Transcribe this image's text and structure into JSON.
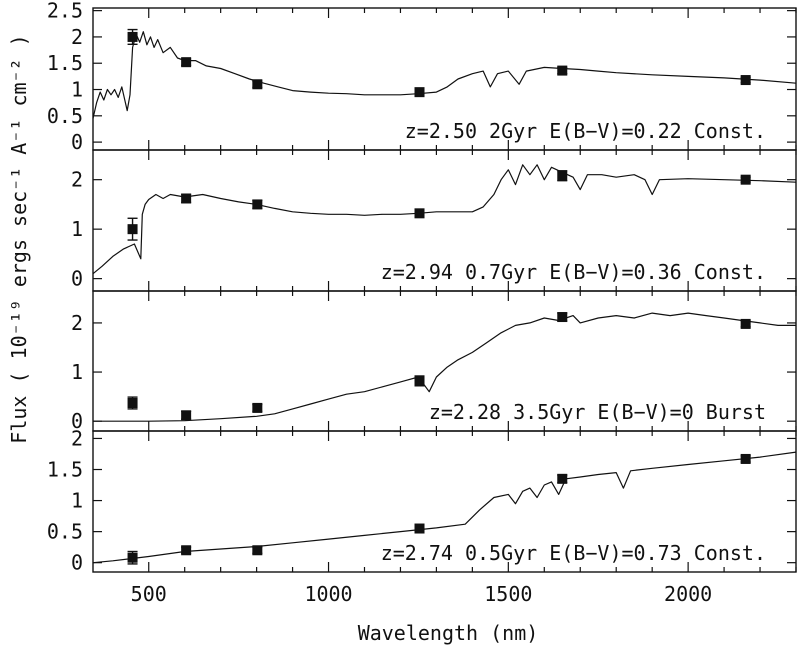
{
  "chart_data": {
    "type": "line",
    "xlabel": "Wavelength (nm)",
    "ylabel": "Flux ( 10⁻¹⁹ ergs sec⁻¹ A⁻¹ cm⁻² )",
    "xlim": [
      345,
      2300
    ],
    "xticks": [
      500,
      1000,
      1500,
      2000
    ],
    "grid": false,
    "legend": "none",
    "panels": [
      {
        "label": "z=2.50 2Gyr E(B−V)=0.22 Const.",
        "ylim": [
          -0.15,
          2.55
        ],
        "yticks": [
          0,
          0.5,
          1,
          1.5,
          2,
          2.5
        ],
        "ytick_labels": [
          "0",
          "0.5",
          "1",
          "1.5",
          "2",
          "2.5"
        ],
        "points": [
          {
            "x": 455,
            "y": 2.0,
            "err": 0.14
          },
          {
            "x": 604,
            "y": 1.52,
            "err": 0.06
          },
          {
            "x": 802,
            "y": 1.1,
            "err": 0.06
          },
          {
            "x": 1253,
            "y": 0.95,
            "err": 0.05
          },
          {
            "x": 1650,
            "y": 1.36,
            "err": 0.06
          },
          {
            "x": 2160,
            "y": 1.18,
            "err": 0.05
          }
        ],
        "model": [
          [
            345,
            0.45
          ],
          [
            355,
            0.75
          ],
          [
            365,
            0.95
          ],
          [
            375,
            0.8
          ],
          [
            385,
            1.0
          ],
          [
            395,
            0.9
          ],
          [
            405,
            1.0
          ],
          [
            415,
            0.85
          ],
          [
            425,
            1.05
          ],
          [
            430,
            0.9
          ],
          [
            440,
            0.6
          ],
          [
            448,
            0.9
          ],
          [
            455,
            1.8
          ],
          [
            465,
            2.05
          ],
          [
            475,
            1.9
          ],
          [
            485,
            2.1
          ],
          [
            495,
            1.85
          ],
          [
            505,
            2.0
          ],
          [
            515,
            1.8
          ],
          [
            525,
            1.95
          ],
          [
            540,
            1.7
          ],
          [
            560,
            1.8
          ],
          [
            580,
            1.6
          ],
          [
            600,
            1.55
          ],
          [
            630,
            1.55
          ],
          [
            660,
            1.45
          ],
          [
            700,
            1.4
          ],
          [
            740,
            1.3
          ],
          [
            780,
            1.2
          ],
          [
            820,
            1.12
          ],
          [
            860,
            1.05
          ],
          [
            900,
            0.98
          ],
          [
            950,
            0.95
          ],
          [
            1000,
            0.93
          ],
          [
            1050,
            0.92
          ],
          [
            1100,
            0.9
          ],
          [
            1150,
            0.9
          ],
          [
            1200,
            0.9
          ],
          [
            1250,
            0.92
          ],
          [
            1300,
            0.95
          ],
          [
            1330,
            1.05
          ],
          [
            1360,
            1.2
          ],
          [
            1400,
            1.3
          ],
          [
            1430,
            1.35
          ],
          [
            1450,
            1.05
          ],
          [
            1470,
            1.3
          ],
          [
            1500,
            1.35
          ],
          [
            1530,
            1.1
          ],
          [
            1550,
            1.35
          ],
          [
            1600,
            1.42
          ],
          [
            1650,
            1.4
          ],
          [
            1700,
            1.38
          ],
          [
            1750,
            1.35
          ],
          [
            1800,
            1.32
          ],
          [
            1900,
            1.28
          ],
          [
            2000,
            1.25
          ],
          [
            2100,
            1.22
          ],
          [
            2200,
            1.18
          ],
          [
            2300,
            1.12
          ]
        ]
      },
      {
        "label": "z=2.94 0.7Gyr E(B−V)=0.36 Const.",
        "ylim": [
          -0.25,
          2.6
        ],
        "yticks": [
          0,
          1,
          2
        ],
        "ytick_labels": [
          "0",
          "1",
          "2"
        ],
        "points": [
          {
            "x": 455,
            "y": 1.0,
            "err": 0.22
          },
          {
            "x": 604,
            "y": 1.62,
            "err": 0.08
          },
          {
            "x": 802,
            "y": 1.5,
            "err": 0.08
          },
          {
            "x": 1253,
            "y": 1.32,
            "err": 0.08
          },
          {
            "x": 1650,
            "y": 2.08,
            "err": 0.1
          },
          {
            "x": 2160,
            "y": 2.0,
            "err": 0.05
          }
        ],
        "model": [
          [
            345,
            0.1
          ],
          [
            370,
            0.25
          ],
          [
            400,
            0.45
          ],
          [
            430,
            0.6
          ],
          [
            460,
            0.7
          ],
          [
            478,
            0.4
          ],
          [
            482,
            1.3
          ],
          [
            490,
            1.5
          ],
          [
            500,
            1.6
          ],
          [
            520,
            1.7
          ],
          [
            540,
            1.62
          ],
          [
            560,
            1.7
          ],
          [
            600,
            1.65
          ],
          [
            650,
            1.7
          ],
          [
            700,
            1.62
          ],
          [
            750,
            1.55
          ],
          [
            800,
            1.5
          ],
          [
            850,
            1.42
          ],
          [
            900,
            1.35
          ],
          [
            950,
            1.32
          ],
          [
            1000,
            1.3
          ],
          [
            1050,
            1.3
          ],
          [
            1100,
            1.28
          ],
          [
            1150,
            1.3
          ],
          [
            1200,
            1.3
          ],
          [
            1250,
            1.32
          ],
          [
            1300,
            1.35
          ],
          [
            1350,
            1.35
          ],
          [
            1400,
            1.35
          ],
          [
            1430,
            1.45
          ],
          [
            1460,
            1.7
          ],
          [
            1480,
            2.0
          ],
          [
            1500,
            2.2
          ],
          [
            1520,
            1.9
          ],
          [
            1540,
            2.3
          ],
          [
            1560,
            2.1
          ],
          [
            1580,
            2.3
          ],
          [
            1600,
            2.0
          ],
          [
            1620,
            2.25
          ],
          [
            1650,
            2.15
          ],
          [
            1680,
            2.05
          ],
          [
            1700,
            1.8
          ],
          [
            1720,
            2.1
          ],
          [
            1760,
            2.1
          ],
          [
            1800,
            2.05
          ],
          [
            1850,
            2.1
          ],
          [
            1880,
            2.0
          ],
          [
            1900,
            1.7
          ],
          [
            1920,
            2.0
          ],
          [
            2000,
            2.02
          ],
          [
            2100,
            2.0
          ],
          [
            2200,
            1.98
          ],
          [
            2300,
            1.95
          ]
        ]
      },
      {
        "label": "z=2.28 3.5Gyr E(B−V)=0 Burst",
        "ylim": [
          -0.2,
          2.65
        ],
        "yticks": [
          0,
          1,
          2
        ],
        "ytick_labels": [
          "0",
          "1",
          "2"
        ],
        "points": [
          {
            "x": 455,
            "y": 0.37,
            "err": 0.12
          },
          {
            "x": 604,
            "y": 0.12,
            "err": 0.08
          },
          {
            "x": 802,
            "y": 0.27,
            "err": 0.07
          },
          {
            "x": 1253,
            "y": 0.82,
            "err": 0.1
          },
          {
            "x": 1650,
            "y": 2.12,
            "err": 0.08
          },
          {
            "x": 2160,
            "y": 1.98,
            "err": 0.06
          }
        ],
        "model": [
          [
            345,
            0.0
          ],
          [
            500,
            0.0
          ],
          [
            600,
            0.01
          ],
          [
            700,
            0.05
          ],
          [
            800,
            0.1
          ],
          [
            850,
            0.15
          ],
          [
            900,
            0.25
          ],
          [
            950,
            0.35
          ],
          [
            1000,
            0.45
          ],
          [
            1050,
            0.55
          ],
          [
            1100,
            0.6
          ],
          [
            1150,
            0.7
          ],
          [
            1200,
            0.8
          ],
          [
            1250,
            0.9
          ],
          [
            1280,
            0.6
          ],
          [
            1300,
            0.9
          ],
          [
            1330,
            1.1
          ],
          [
            1360,
            1.25
          ],
          [
            1400,
            1.4
          ],
          [
            1440,
            1.6
          ],
          [
            1480,
            1.8
          ],
          [
            1520,
            1.95
          ],
          [
            1560,
            2.0
          ],
          [
            1600,
            2.1
          ],
          [
            1640,
            2.05
          ],
          [
            1680,
            2.15
          ],
          [
            1700,
            2.0
          ],
          [
            1750,
            2.1
          ],
          [
            1800,
            2.15
          ],
          [
            1850,
            2.1
          ],
          [
            1900,
            2.2
          ],
          [
            1950,
            2.15
          ],
          [
            2000,
            2.2
          ],
          [
            2050,
            2.15
          ],
          [
            2100,
            2.1
          ],
          [
            2150,
            2.05
          ],
          [
            2200,
            2.0
          ],
          [
            2250,
            1.95
          ],
          [
            2300,
            1.95
          ]
        ]
      },
      {
        "label": "z=2.74 0.5Gyr E(B−V)=0.73 Const.",
        "ylim": [
          -0.15,
          2.12
        ],
        "yticks": [
          0,
          0.5,
          1,
          1.5,
          2
        ],
        "ytick_labels": [
          "0",
          "0.5",
          "1",
          "1.5",
          "2"
        ],
        "points": [
          {
            "x": 455,
            "y": 0.08,
            "err": 0.1
          },
          {
            "x": 604,
            "y": 0.2,
            "err": 0.05
          },
          {
            "x": 802,
            "y": 0.2,
            "err": 0.05
          },
          {
            "x": 1253,
            "y": 0.55,
            "err": 0.05
          },
          {
            "x": 1650,
            "y": 1.35,
            "err": 0.06
          },
          {
            "x": 2160,
            "y": 1.67,
            "err": 0.05
          }
        ],
        "model": [
          [
            345,
            0.0
          ],
          [
            400,
            0.03
          ],
          [
            500,
            0.1
          ],
          [
            600,
            0.18
          ],
          [
            700,
            0.22
          ],
          [
            800,
            0.26
          ],
          [
            900,
            0.32
          ],
          [
            1000,
            0.38
          ],
          [
            1100,
            0.44
          ],
          [
            1200,
            0.5
          ],
          [
            1300,
            0.56
          ],
          [
            1380,
            0.62
          ],
          [
            1420,
            0.85
          ],
          [
            1460,
            1.05
          ],
          [
            1500,
            1.1
          ],
          [
            1520,
            0.95
          ],
          [
            1540,
            1.15
          ],
          [
            1560,
            1.2
          ],
          [
            1580,
            1.05
          ],
          [
            1600,
            1.25
          ],
          [
            1620,
            1.3
          ],
          [
            1640,
            1.1
          ],
          [
            1660,
            1.35
          ],
          [
            1700,
            1.38
          ],
          [
            1750,
            1.42
          ],
          [
            1800,
            1.45
          ],
          [
            1820,
            1.2
          ],
          [
            1840,
            1.48
          ],
          [
            1900,
            1.52
          ],
          [
            2000,
            1.58
          ],
          [
            2100,
            1.64
          ],
          [
            2200,
            1.7
          ],
          [
            2300,
            1.78
          ]
        ]
      }
    ]
  }
}
